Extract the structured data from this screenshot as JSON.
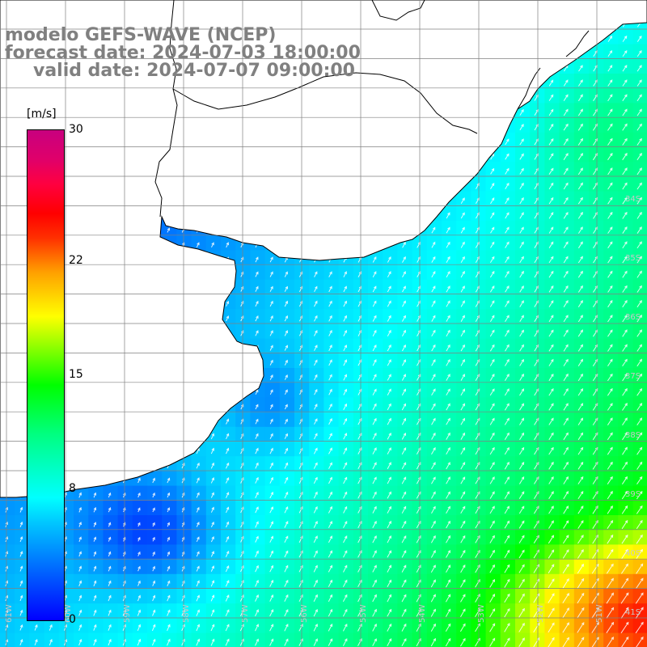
{
  "title": {
    "line1": "modelo GEFS-WAVE (NCEP)",
    "line2": "forecast date: 2024-07-03 18:00:00",
    "line3": "valid date: 2024-07-07 09:00:00"
  },
  "colorbar": {
    "unit": "[m/s]",
    "ticks": [
      "30",
      "22",
      "15",
      "8",
      "0"
    ],
    "tick_values": [
      30,
      22,
      15,
      8,
      0
    ],
    "range": [
      0,
      30
    ],
    "colors": [
      "#0000ff",
      "#00c8ff",
      "#00ffff",
      "#00ff00",
      "#ffff00",
      "#ff8000",
      "#ff0000",
      "#c8007f"
    ]
  },
  "lat_labels": [
    "34S",
    "35S",
    "36S",
    "37S",
    "38S",
    "39S",
    "40S",
    "41S"
  ],
  "lon_labels": [
    "61W",
    "60W",
    "59W",
    "58W",
    "57W",
    "56W",
    "55W",
    "54W",
    "53W",
    "52W",
    "51W"
  ],
  "style": {
    "land_color": "#ffffff",
    "coast_color": "#000000",
    "grid_color": "#808080",
    "arrow_color": "#ffffff",
    "title_color": "#808080"
  }
}
